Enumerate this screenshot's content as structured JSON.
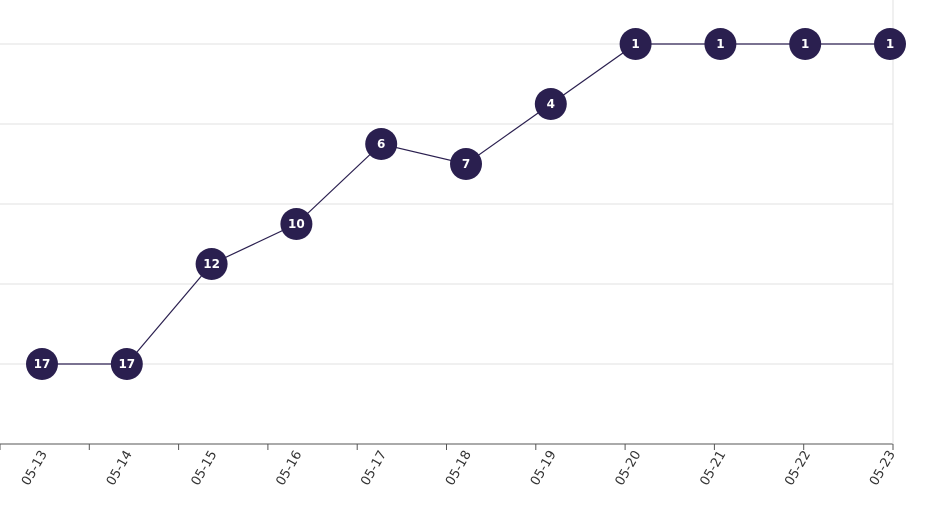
{
  "chart_data": {
    "type": "line",
    "x": [
      "05-13",
      "05-14",
      "05-15",
      "05-16",
      "05-17",
      "05-18",
      "05-19",
      "05-20",
      "05-21",
      "05-22",
      "05-23"
    ],
    "series": [
      {
        "values": [
          17,
          17,
          12,
          10,
          6,
          7,
          4,
          1,
          1,
          1,
          1
        ]
      }
    ],
    "y_inverted": true,
    "ylim": [
      1,
      17
    ],
    "grid": true,
    "point_labels": true,
    "colors": {
      "line": "#2a1f4f",
      "marker": "#2a1f4f",
      "label_text": "#ffffff"
    }
  }
}
